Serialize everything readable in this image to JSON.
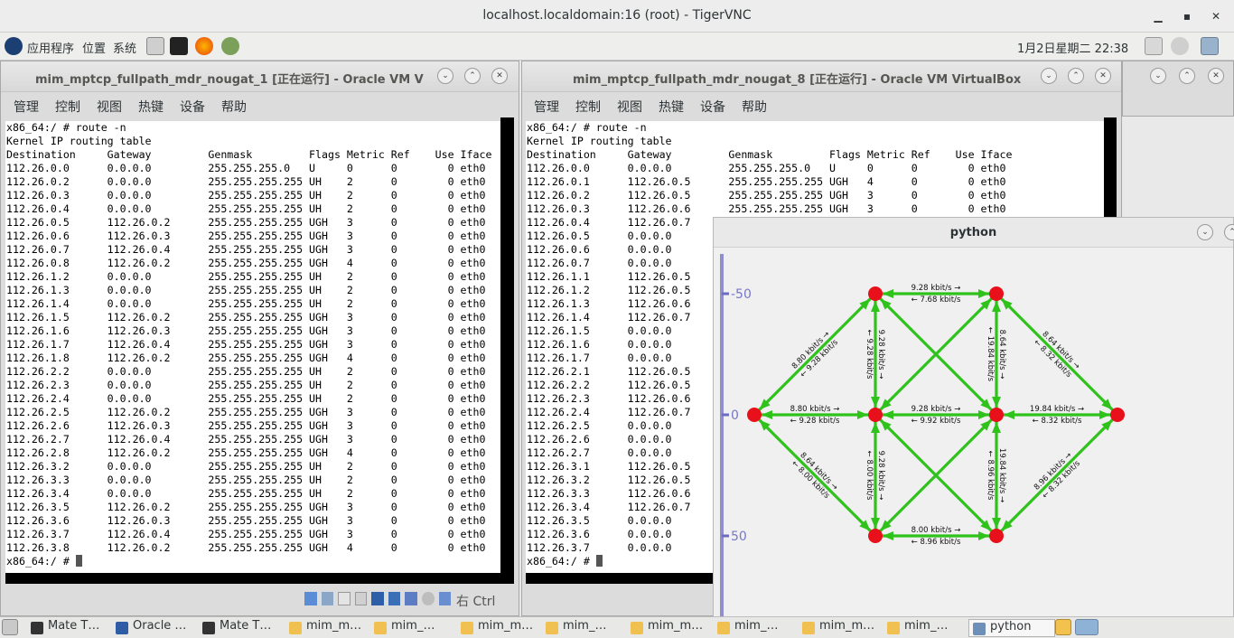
{
  "vnc": {
    "title": "localhost.localdomain:16 (root) - TigerVNC"
  },
  "panel": {
    "apps": "应用程序",
    "places": "位置",
    "system": "系统",
    "clock": "1月2日星期二 22:38"
  },
  "vm1": {
    "title": "mim_mptcp_fullpath_mdr_nougat_1 [正在运行] - Oracle VM V",
    "menu": [
      "管理",
      "控制",
      "视图",
      "热键",
      "设备",
      "帮助"
    ],
    "host_key": "右 Ctrl",
    "terminal": [
      "x86_64:/ # route -n",
      "Kernel IP routing table",
      "Destination     Gateway         Genmask         Flags Metric Ref    Use Iface",
      "112.26.0.0      0.0.0.0         255.255.255.0   U     0      0        0 eth0",
      "112.26.0.2      0.0.0.0         255.255.255.255 UH    2      0        0 eth0",
      "112.26.0.3      0.0.0.0         255.255.255.255 UH    2      0        0 eth0",
      "112.26.0.4      0.0.0.0         255.255.255.255 UH    2      0        0 eth0",
      "112.26.0.5      112.26.0.2      255.255.255.255 UGH   3      0        0 eth0",
      "112.26.0.6      112.26.0.3      255.255.255.255 UGH   3      0        0 eth0",
      "112.26.0.7      112.26.0.4      255.255.255.255 UGH   3      0        0 eth0",
      "112.26.0.8      112.26.0.2      255.255.255.255 UGH   4      0        0 eth0",
      "112.26.1.2      0.0.0.0         255.255.255.255 UH    2      0        0 eth0",
      "112.26.1.3      0.0.0.0         255.255.255.255 UH    2      0        0 eth0",
      "112.26.1.4      0.0.0.0         255.255.255.255 UH    2      0        0 eth0",
      "112.26.1.5      112.26.0.2      255.255.255.255 UGH   3      0        0 eth0",
      "112.26.1.6      112.26.0.3      255.255.255.255 UGH   3      0        0 eth0",
      "112.26.1.7      112.26.0.4      255.255.255.255 UGH   3      0        0 eth0",
      "112.26.1.8      112.26.0.2      255.255.255.255 UGH   4      0        0 eth0",
      "112.26.2.2      0.0.0.0         255.255.255.255 UH    2      0        0 eth0",
      "112.26.2.3      0.0.0.0         255.255.255.255 UH    2      0        0 eth0",
      "112.26.2.4      0.0.0.0         255.255.255.255 UH    2      0        0 eth0",
      "112.26.2.5      112.26.0.2      255.255.255.255 UGH   3      0        0 eth0",
      "112.26.2.6      112.26.0.3      255.255.255.255 UGH   3      0        0 eth0",
      "112.26.2.7      112.26.0.4      255.255.255.255 UGH   3      0        0 eth0",
      "112.26.2.8      112.26.0.2      255.255.255.255 UGH   4      0        0 eth0",
      "112.26.3.2      0.0.0.0         255.255.255.255 UH    2      0        0 eth0",
      "112.26.3.3      0.0.0.0         255.255.255.255 UH    2      0        0 eth0",
      "112.26.3.4      0.0.0.0         255.255.255.255 UH    2      0        0 eth0",
      "112.26.3.5      112.26.0.2      255.255.255.255 UGH   3      0        0 eth0",
      "112.26.3.6      112.26.0.3      255.255.255.255 UGH   3      0        0 eth0",
      "112.26.3.7      112.26.0.4      255.255.255.255 UGH   3      0        0 eth0",
      "112.26.3.8      112.26.0.2      255.255.255.255 UGH   4      0        0 eth0",
      "x86_64:/ # "
    ]
  },
  "vm8": {
    "title": "mim_mptcp_fullpath_mdr_nougat_8 [正在运行] - Oracle VM VirtualBox",
    "menu": [
      "管理",
      "控制",
      "视图",
      "热键",
      "设备",
      "帮助"
    ],
    "terminal": [
      "x86_64:/ # route -n",
      "Kernel IP routing table",
      "Destination     Gateway         Genmask         Flags Metric Ref    Use Iface",
      "112.26.0.0      0.0.0.0         255.255.255.0   U     0      0        0 eth0",
      "112.26.0.1      112.26.0.5      255.255.255.255 UGH   4      0        0 eth0",
      "112.26.0.2      112.26.0.5      255.255.255.255 UGH   3      0        0 eth0",
      "112.26.0.3      112.26.0.6      255.255.255.255 UGH   3      0        0 eth0",
      "112.26.0.4      112.26.0.7",
      "112.26.0.5      0.0.0.0",
      "112.26.0.6      0.0.0.0",
      "112.26.0.7      0.0.0.0",
      "112.26.1.1      112.26.0.5",
      "112.26.1.2      112.26.0.5",
      "112.26.1.3      112.26.0.6",
      "112.26.1.4      112.26.0.7",
      "112.26.1.5      0.0.0.0",
      "112.26.1.6      0.0.0.0",
      "112.26.1.7      0.0.0.0",
      "112.26.2.1      112.26.0.5",
      "112.26.2.2      112.26.0.5",
      "112.26.2.3      112.26.0.6",
      "112.26.2.4      112.26.0.7",
      "112.26.2.5      0.0.0.0",
      "112.26.2.6      0.0.0.0",
      "112.26.2.7      0.0.0.0",
      "112.26.3.1      112.26.0.5",
      "112.26.3.2      112.26.0.5",
      "112.26.3.3      112.26.0.6",
      "112.26.3.4      112.26.0.7",
      "112.26.3.5      0.0.0.0",
      "112.26.3.6      0.0.0.0",
      "112.26.3.7      0.0.0.0",
      "x86_64:/ # "
    ]
  },
  "python": {
    "title": "python",
    "y_ticks": [
      "-50",
      "0",
      "50"
    ],
    "node_color": "#e8101a",
    "edge_color": "#2ec21a",
    "nodes": [
      {
        "id": "L",
        "x": -100,
        "y": 0
      },
      {
        "id": "A1",
        "x": -50,
        "y": -50
      },
      {
        "id": "A2",
        "x": -50,
        "y": 0
      },
      {
        "id": "A3",
        "x": -50,
        "y": 50
      },
      {
        "id": "B1",
        "x": 0,
        "y": -50
      },
      {
        "id": "B2",
        "x": 0,
        "y": 0
      },
      {
        "id": "B3",
        "x": 0,
        "y": 50
      },
      {
        "id": "R",
        "x": 50,
        "y": 0
      }
    ],
    "edges": [
      [
        "L",
        "A1"
      ],
      [
        "L",
        "A2"
      ],
      [
        "L",
        "A3"
      ],
      [
        "A1",
        "B1"
      ],
      [
        "A2",
        "B2"
      ],
      [
        "A3",
        "B3"
      ],
      [
        "A1",
        "A2"
      ],
      [
        "A2",
        "A3"
      ],
      [
        "B1",
        "B2"
      ],
      [
        "B2",
        "B3"
      ],
      [
        "A1",
        "B2"
      ],
      [
        "A2",
        "B1"
      ],
      [
        "A2",
        "B3"
      ],
      [
        "A3",
        "B2"
      ],
      [
        "B1",
        "R"
      ],
      [
        "B2",
        "R"
      ],
      [
        "B3",
        "R"
      ]
    ],
    "labels": [
      {
        "edge": [
          "A1",
          "B1"
        ],
        "fwd": "9.28 kbit/s →",
        "rev": "← 7.68 kbit/s"
      },
      {
        "edge": [
          "L",
          "A2"
        ],
        "fwd": "8.80 kbit/s →",
        "rev": "← 9.28 kbit/s"
      },
      {
        "edge": [
          "A2",
          "B2"
        ],
        "fwd": "9.28 kbit/s →",
        "rev": "← 9.92 kbit/s"
      },
      {
        "edge": [
          "B2",
          "R"
        ],
        "fwd": "19.84 kbit/s →",
        "rev": "← 8.32 kbit/s"
      },
      {
        "edge": [
          "A3",
          "B3"
        ],
        "fwd": "8.00 kbit/s →",
        "rev": "← 8.96 kbit/s"
      },
      {
        "edge": [
          "L",
          "A1"
        ],
        "fwd": "8.80 kbit/s →",
        "rev": "← 9.28 kbit/s"
      },
      {
        "edge": [
          "L",
          "A3"
        ],
        "fwd": "8.64 kbit/s →",
        "rev": "← 8.00 kbit/s"
      },
      {
        "edge": [
          "B1",
          "R"
        ],
        "fwd": "8.64 kbit/s →",
        "rev": "← 8.32 kbit/s"
      },
      {
        "edge": [
          "B3",
          "R"
        ],
        "fwd": "8.96 kbit/s →",
        "rev": "← 8.32 kbit/s"
      },
      {
        "edge": [
          "A1",
          "A2"
        ],
        "fwd": "9.28 kbit/s →",
        "rev": "← 9.28 kbit/s"
      },
      {
        "edge": [
          "A2",
          "A3"
        ],
        "fwd": "9.28 kbit/s →",
        "rev": "← 8.00 kbit/s"
      },
      {
        "edge": [
          "B1",
          "B2"
        ],
        "fwd": "8.64 kbit/s →",
        "rev": "← 19.84 kbit/s"
      },
      {
        "edge": [
          "B2",
          "B3"
        ],
        "fwd": "19.84 kbit/s →",
        "rev": "← 8.96 kbit/s"
      }
    ]
  },
  "taskbar": {
    "items": [
      {
        "label": "Mate T…",
        "icon": "terminal-icon"
      },
      {
        "label": "Oracle …",
        "icon": "virtualbox-icon"
      },
      {
        "label": "Mate T…",
        "icon": "terminal-icon"
      },
      {
        "label": "mim_m…",
        "icon": "vm-icon"
      },
      {
        "label": "mim_…",
        "icon": "vm-icon"
      },
      {
        "label": "mim_m…",
        "icon": "vm-icon"
      },
      {
        "label": "mim_…",
        "icon": "vm-icon"
      },
      {
        "label": "mim_m…",
        "icon": "vm-icon"
      },
      {
        "label": "mim_…",
        "icon": "vm-icon"
      },
      {
        "label": "mim_m…",
        "icon": "vm-icon"
      },
      {
        "label": "mim_…",
        "icon": "vm-icon"
      },
      {
        "label": "python",
        "icon": "window-icon"
      }
    ]
  }
}
